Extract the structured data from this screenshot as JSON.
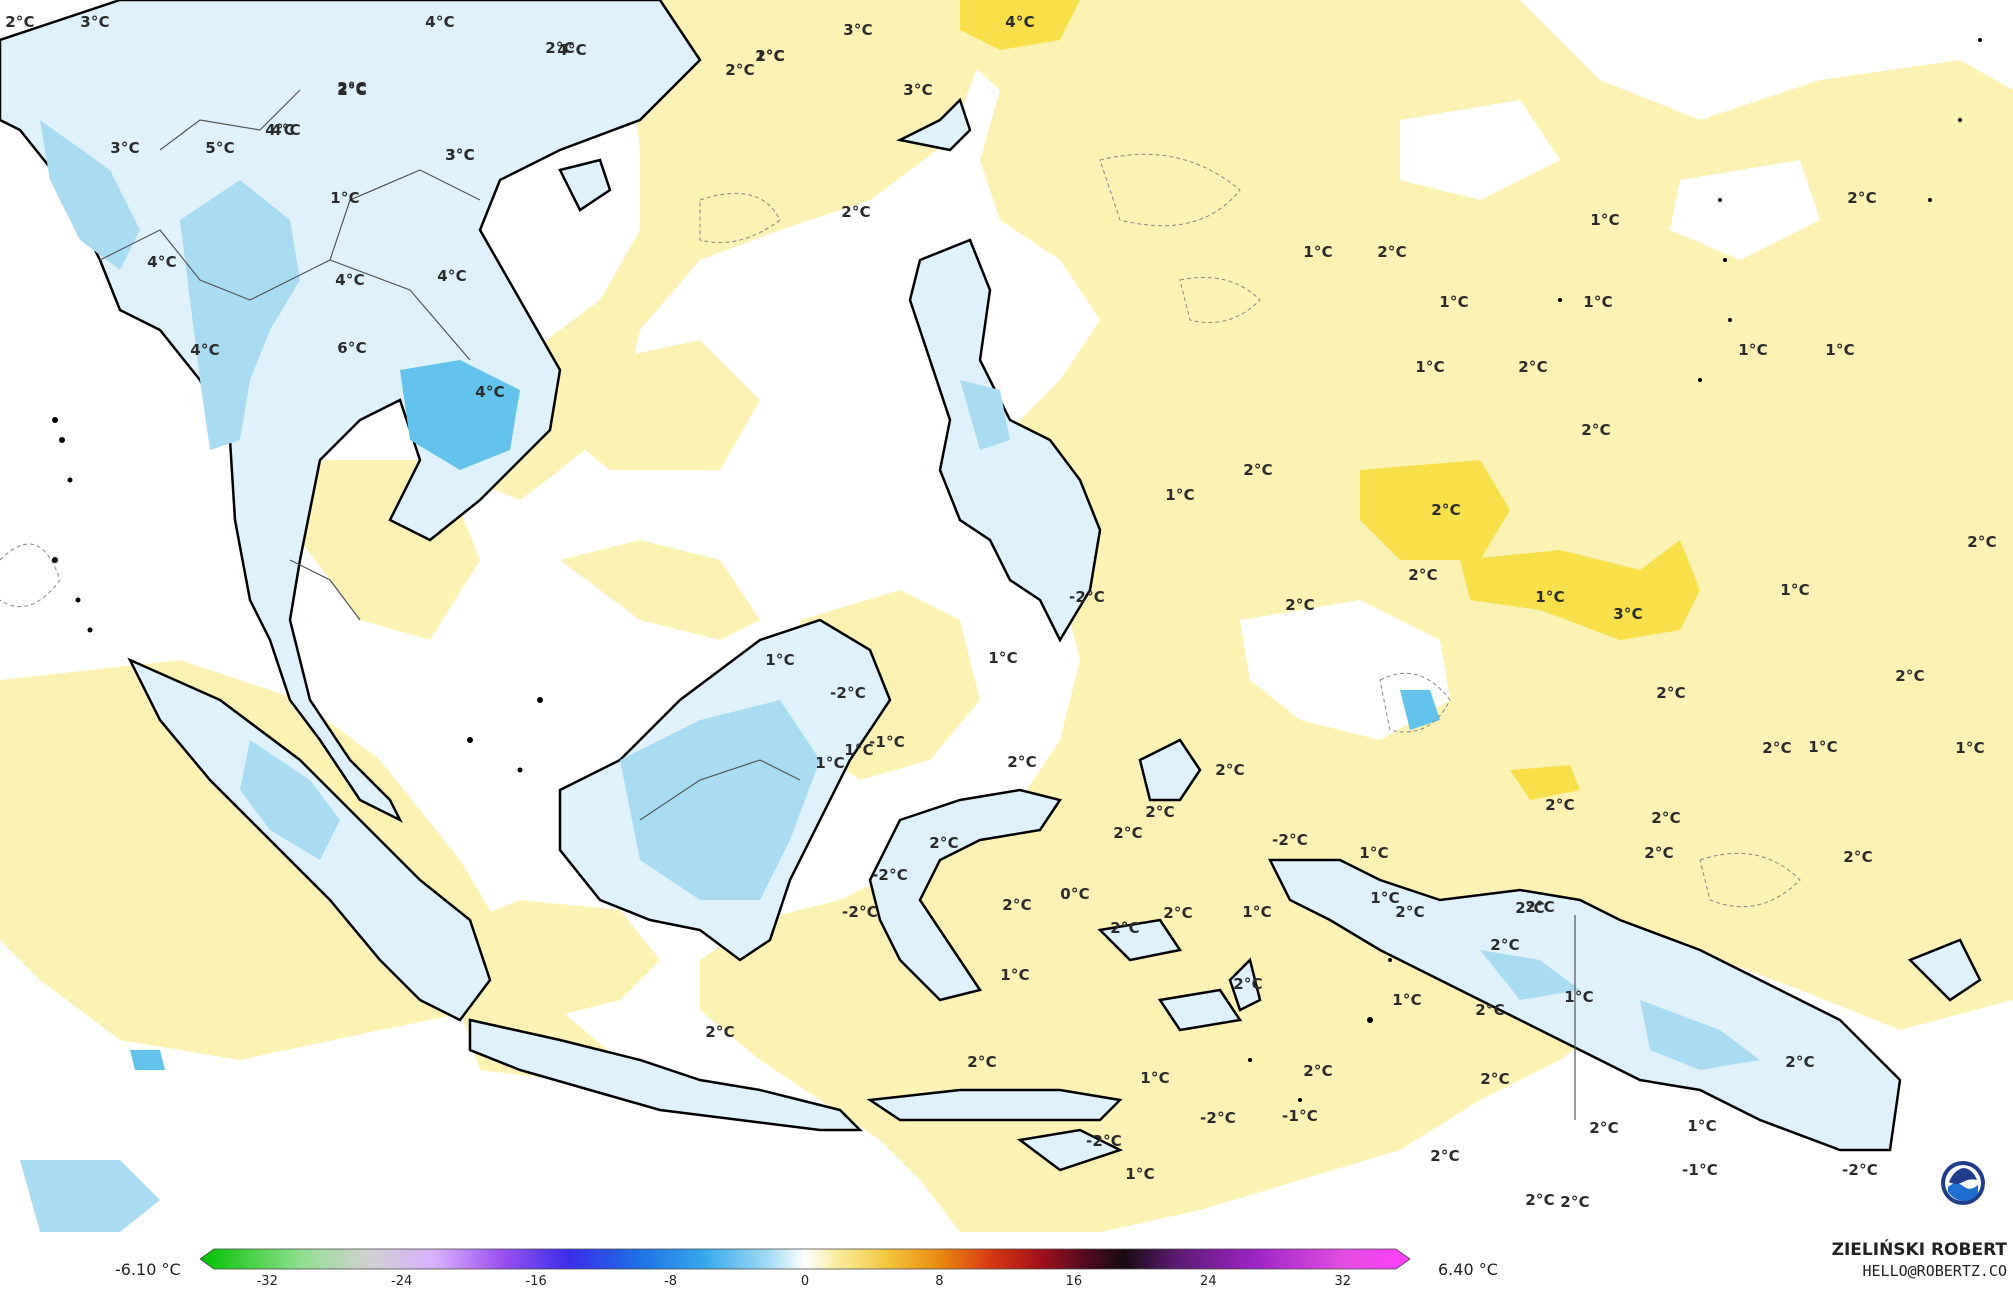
{
  "map": {
    "colors": {
      "ocean": "#ffffff",
      "warm1": "#fbf2b3",
      "warm2": "#f8e04a",
      "warm3": "#f1bf20",
      "warm4": "#ec9a14",
      "cold1": "#dff2fb",
      "cold2": "#a9dcf3",
      "cold3": "#64c3ec",
      "coast": "#000000",
      "border": "#555555"
    },
    "labels": [
      "2°C",
      "3°C",
      "4°C",
      "4°C",
      "2°C",
      "3°C",
      "4°C",
      "3°C",
      "2°C",
      "2°C",
      "4°C",
      "3°C",
      "5°C",
      "4°C",
      "3°C",
      "4°C",
      "2°C",
      "1°C",
      "4°C",
      "4°C",
      "4°C",
      "6°C",
      "4°C",
      "3°C",
      "2°C",
      "2°C",
      "2°C",
      "2°C",
      "1°C",
      "1°C",
      "1°C",
      "2°C",
      "2°C",
      "1°C",
      "1°C",
      "1°C",
      "1°C",
      "1°C",
      "2°C",
      "2°C",
      "2°C",
      "2°C",
      "1°C",
      "2°C",
      "1°C",
      "2°C",
      "1°C",
      "3°C",
      "2°C",
      "2°C",
      "2°C",
      "2°C",
      "1°C",
      "2°C",
      "2°C",
      "2°C",
      "2°C",
      "2°C",
      "1°C",
      "2°C",
      "1°C",
      "-2°C",
      "2°C",
      "1°C",
      "1°C",
      "-1°C",
      "-2°C",
      "-2°C",
      "2°C",
      "2°C",
      "2°C",
      "1°C",
      "1°C",
      "-1°C",
      "2°C",
      "2°C",
      "1°C",
      "-2°C",
      "0°C",
      "2°C",
      "2°C",
      "2°C",
      "2°C",
      "2°C",
      "2°C",
      "2°C",
      "2°C",
      "2°C",
      "1°C",
      "-2°C",
      "1°C",
      "1°C",
      "1°C",
      "2°C",
      "1°C",
      "2°C",
      "-1°C",
      "-2°C",
      "2°C",
      "1°C",
      "-2°C",
      "2°C",
      "-2°C",
      "2°C",
      "1°C",
      "2°C"
    ]
  },
  "legend": {
    "min_label": "-6.10 °C",
    "max_label": "6.40 °C",
    "ticks": [
      "-32",
      "-24",
      "-16",
      "-8",
      "0",
      "8",
      "16",
      "24",
      "32"
    ],
    "tick_values": [
      -32,
      -24,
      -16,
      -8,
      0,
      8,
      16,
      24,
      32
    ],
    "range": [
      -36,
      36
    ],
    "gradient_stops": [
      [
        "#00c000",
        -36
      ],
      [
        "#8fe08f",
        -30
      ],
      [
        "#d0d0d0",
        -26
      ],
      [
        "#d9b0ff",
        -22
      ],
      [
        "#9a50f0",
        -18
      ],
      [
        "#3a2ee8",
        -14
      ],
      [
        "#1f6fe6",
        -10
      ],
      [
        "#35a8ec",
        -6
      ],
      [
        "#a8def5",
        -2
      ],
      [
        "#ffffff",
        0
      ],
      [
        "#f9eb9a",
        2
      ],
      [
        "#f3c53a",
        5
      ],
      [
        "#ea8a10",
        8
      ],
      [
        "#d83a14",
        11
      ],
      [
        "#a2101a",
        14
      ],
      [
        "#4a0a20",
        17
      ],
      [
        "#1a0a12",
        19
      ],
      [
        "#5a1a70",
        22
      ],
      [
        "#a026c8",
        27
      ],
      [
        "#e24de0",
        32
      ],
      [
        "#ff40ff",
        36
      ]
    ]
  },
  "credit": {
    "name": "ZIELIŃSKI ROBERT",
    "email": "HELLO@ROBERTZ.CO"
  },
  "logo": {
    "icon": "noaa-logo-icon"
  }
}
